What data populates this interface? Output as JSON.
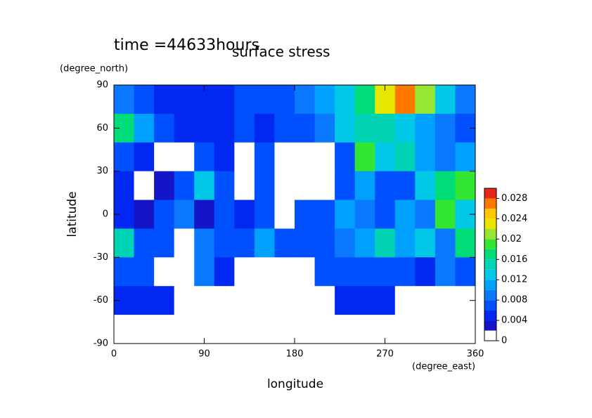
{
  "chart_data": {
    "type": "heatmap",
    "title": "surface stress",
    "subtitle": "time =44633hours",
    "x_label": "longitude",
    "x_unit": "(degree_east)",
    "y_label": "latitude",
    "y_unit": "(degree_north)",
    "xlim": [
      0,
      360
    ],
    "ylim": [
      -90,
      90
    ],
    "xticks": [
      0,
      90,
      180,
      270,
      360
    ],
    "yticks": [
      90,
      60,
      30,
      0,
      -30,
      -60,
      -90
    ],
    "x": [
      10,
      30,
      50,
      70,
      90,
      110,
      130,
      150,
      170,
      190,
      210,
      230,
      250,
      270,
      290,
      310,
      330,
      350
    ],
    "y": [
      80,
      60,
      40,
      20,
      0,
      -20,
      -40,
      -60,
      -80
    ],
    "z": [
      [
        0.008,
        0.006,
        0.005,
        0.004,
        0.005,
        0.005,
        0.006,
        0.006,
        0.007,
        0.008,
        0.01,
        0.012,
        0.016,
        0.022,
        0.026,
        0.02,
        0.012,
        0.008
      ],
      [
        0.016,
        0.01,
        0.006,
        0.005,
        0.004,
        0.005,
        0.006,
        0.005,
        0.006,
        0.007,
        0.008,
        0.012,
        0.014,
        0.014,
        0.012,
        0.01,
        0.008,
        0.006
      ],
      [
        0.006,
        0.005,
        0.001,
        0.001,
        0.006,
        0.004,
        0.001,
        0.006,
        0.001,
        0.001,
        0.001,
        0.006,
        0.018,
        0.012,
        0.014,
        0.01,
        0.008,
        0.01
      ],
      [
        0.005,
        0.001,
        0.002,
        0.006,
        0.012,
        0.006,
        0.001,
        0.006,
        0.001,
        0.001,
        0.001,
        0.006,
        0.01,
        0.006,
        0.006,
        0.012,
        0.016,
        0.018
      ],
      [
        0.004,
        0.002,
        0.006,
        0.008,
        0.002,
        0.006,
        0.004,
        0.006,
        0.001,
        0.006,
        0.006,
        0.01,
        0.008,
        0.006,
        0.01,
        0.008,
        0.018,
        0.012
      ],
      [
        0.014,
        0.006,
        0.006,
        0.001,
        0.008,
        0.006,
        0.006,
        0.01,
        0.006,
        0.006,
        0.006,
        0.008,
        0.01,
        0.014,
        0.01,
        0.012,
        0.008,
        0.016
      ],
      [
        0.006,
        0.006,
        0.001,
        0.001,
        0.008,
        0.004,
        0.001,
        0.001,
        0.001,
        0.001,
        0.006,
        0.006,
        0.006,
        0.006,
        0.006,
        0.004,
        0.008,
        0.006
      ],
      [
        0.005,
        0.004,
        0.004,
        0.001,
        0.001,
        0.001,
        0.001,
        0.001,
        0.001,
        0.001,
        0.001,
        0.004,
        0.004,
        0.004,
        0.001,
        0.001,
        0.001,
        0.001
      ],
      [
        0,
        0,
        0,
        0,
        0,
        0,
        0,
        0,
        0,
        0,
        0,
        0,
        0,
        0,
        0,
        0,
        0,
        0
      ]
    ],
    "color_levels": [
      0,
      0.002,
      0.004,
      0.006,
      0.008,
      0.01,
      0.012,
      0.014,
      0.016,
      0.018,
      0.02,
      0.022,
      0.024,
      0.026,
      0.028,
      0.03
    ],
    "colors": [
      "#ffffff",
      "#1414c8",
      "#0028f0",
      "#0050ff",
      "#0a78ff",
      "#00a0ff",
      "#00c8e6",
      "#00d2b4",
      "#00dc78",
      "#32e632",
      "#96e632",
      "#e6e600",
      "#ffc800",
      "#ff7800",
      "#e62814"
    ],
    "colorbar_ticks": [
      0,
      0.004,
      0.008,
      0.012,
      0.016,
      0.02,
      0.024,
      0.028
    ]
  }
}
